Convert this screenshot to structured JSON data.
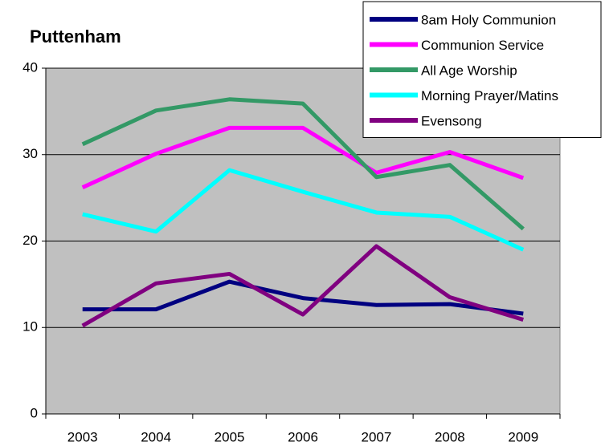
{
  "chart_data": {
    "type": "line",
    "title": "Puttenham",
    "categories": [
      "2003",
      "2004",
      "2005",
      "2006",
      "2007",
      "2008",
      "2009"
    ],
    "series": [
      {
        "name": "8am Holy Communion",
        "color": "#000080",
        "values": [
          12.1,
          12.1,
          15.3,
          13.4,
          12.6,
          12.7,
          11.6
        ]
      },
      {
        "name": "Communion Service",
        "color": "#ff00ff",
        "values": [
          26.2,
          30.1,
          33.1,
          33.1,
          27.9,
          30.3,
          27.3
        ]
      },
      {
        "name": "All Age Worship",
        "color": "#339966",
        "values": [
          31.2,
          35.1,
          36.4,
          35.9,
          27.4,
          28.8,
          21.4
        ]
      },
      {
        "name": "Morning Prayer/Matins",
        "color": "#00ffff",
        "values": [
          23.1,
          21.1,
          28.2,
          25.7,
          23.3,
          22.8,
          19.0
        ]
      },
      {
        "name": "Evensong",
        "color": "#800080",
        "values": [
          10.2,
          15.1,
          16.2,
          11.5,
          19.4,
          13.5,
          10.9
        ]
      }
    ],
    "ylim": [
      0,
      40
    ],
    "yticks": [
      0,
      10,
      20,
      30,
      40
    ],
    "grid": true,
    "legend": "top-right"
  }
}
